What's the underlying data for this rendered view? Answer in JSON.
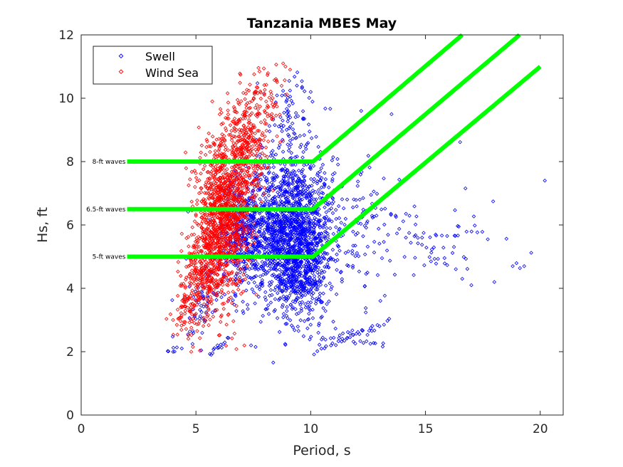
{
  "chart_data": {
    "type": "scatter",
    "title": "Tanzania MBES May",
    "xlabel": "Period, s",
    "ylabel": "Hs, ft",
    "xlim": [
      0,
      21
    ],
    "ylim": [
      0,
      12
    ],
    "xticks": [
      0,
      5,
      10,
      15,
      20
    ],
    "yticks": [
      0,
      2,
      4,
      6,
      8,
      10,
      12
    ],
    "legend": {
      "placement": "top-left",
      "entries": [
        {
          "name": "Swell",
          "color": "#0000ff"
        },
        {
          "name": "Wind Sea",
          "color": "#ff0000"
        }
      ]
    },
    "series": [
      {
        "name": "Swell",
        "color": "#0000ff",
        "marker": "diamond",
        "clusters": [
          {
            "cx": 8.9,
            "cy": 5.9,
            "sx": 1.05,
            "sy": 1.1,
            "n": 1500
          },
          {
            "cx": 9.6,
            "cy": 4.6,
            "sx": 0.6,
            "sy": 0.9,
            "n": 450
          },
          {
            "cx": 7.0,
            "cy": 5.6,
            "sx": 0.5,
            "sy": 0.8,
            "n": 250
          },
          {
            "cx": 11.8,
            "cy": 6.0,
            "sx": 1.3,
            "sy": 1.2,
            "n": 130
          },
          {
            "cx": 15.5,
            "cy": 5.2,
            "sx": 1.8,
            "sy": 0.7,
            "n": 40
          },
          {
            "cx": 9.2,
            "cy": 9.2,
            "sx": 0.7,
            "sy": 0.8,
            "n": 90
          },
          {
            "cx": 5.2,
            "cy": 3.5,
            "sx": 0.4,
            "sy": 0.6,
            "n": 60
          }
        ],
        "tracks": [
          {
            "x0": 5.6,
            "y0": 1.9,
            "x1": 6.4,
            "y1": 2.4,
            "n": 14
          },
          {
            "x0": 10.2,
            "y0": 2.0,
            "x1": 13.4,
            "y1": 3.0,
            "n": 26
          },
          {
            "x0": 11.2,
            "y0": 2.4,
            "x1": 13.2,
            "y1": 2.2,
            "n": 14
          },
          {
            "x0": 10.5,
            "y0": 2.4,
            "x1": 12.8,
            "y1": 2.7,
            "n": 14
          },
          {
            "x0": 3.7,
            "y0": 1.95,
            "x1": 4.3,
            "y1": 2.15,
            "n": 7
          },
          {
            "x0": 14.2,
            "y0": 5.6,
            "x1": 17.5,
            "y1": 5.8,
            "n": 14
          },
          {
            "x0": 13.0,
            "y0": 6.8,
            "x1": 15.8,
            "y1": 4.7,
            "n": 12
          }
        ],
        "outliers": [
          [
            20.2,
            7.4
          ],
          [
            19.3,
            4.7
          ],
          [
            18.8,
            4.7
          ],
          [
            17.0,
            4.1
          ],
          [
            16.6,
            4.3
          ],
          [
            18.0,
            4.2
          ],
          [
            7.4,
            2.2
          ],
          [
            7.6,
            2.15
          ],
          [
            10.0,
            10.2
          ],
          [
            9.4,
            10.4
          ],
          [
            12.4,
            9.4
          ],
          [
            12.2,
            9.6
          ]
        ]
      },
      {
        "name": "Wind Sea",
        "color": "#ff0000",
        "marker": "diamond",
        "clusters": [
          {
            "cx": 6.2,
            "cy": 6.3,
            "sx": 0.55,
            "sy": 1.2,
            "n": 1100
          },
          {
            "cx": 7.2,
            "cy": 8.3,
            "sx": 0.45,
            "sy": 0.9,
            "n": 350
          },
          {
            "cx": 5.4,
            "cy": 4.6,
            "sx": 0.4,
            "sy": 0.7,
            "n": 300
          },
          {
            "cx": 4.6,
            "cy": 3.4,
            "sx": 0.3,
            "sy": 0.5,
            "n": 80
          },
          {
            "cx": 8.1,
            "cy": 10.0,
            "sx": 0.35,
            "sy": 0.5,
            "n": 60
          }
        ],
        "tracks": [],
        "outliers": [
          [
            8.8,
            11.1
          ],
          [
            8.9,
            11.0
          ],
          [
            9.1,
            10.9
          ],
          [
            4.0,
            3.0
          ]
        ]
      }
    ],
    "threshold_lines": [
      {
        "label": "5-ft waves",
        "color": "#00ff00",
        "points": [
          [
            2.0,
            5.0
          ],
          [
            10.1,
            5.0
          ],
          [
            20.0,
            11.0
          ]
        ]
      },
      {
        "label": "6.5-ft waves",
        "color": "#00ff00",
        "points": [
          [
            2.0,
            6.5
          ],
          [
            10.1,
            6.5
          ],
          [
            19.1,
            12.0
          ]
        ]
      },
      {
        "label": "8-ft waves",
        "color": "#00ff00",
        "points": [
          [
            2.0,
            8.0
          ],
          [
            10.1,
            8.0
          ],
          [
            16.6,
            12.0
          ]
        ]
      }
    ]
  }
}
